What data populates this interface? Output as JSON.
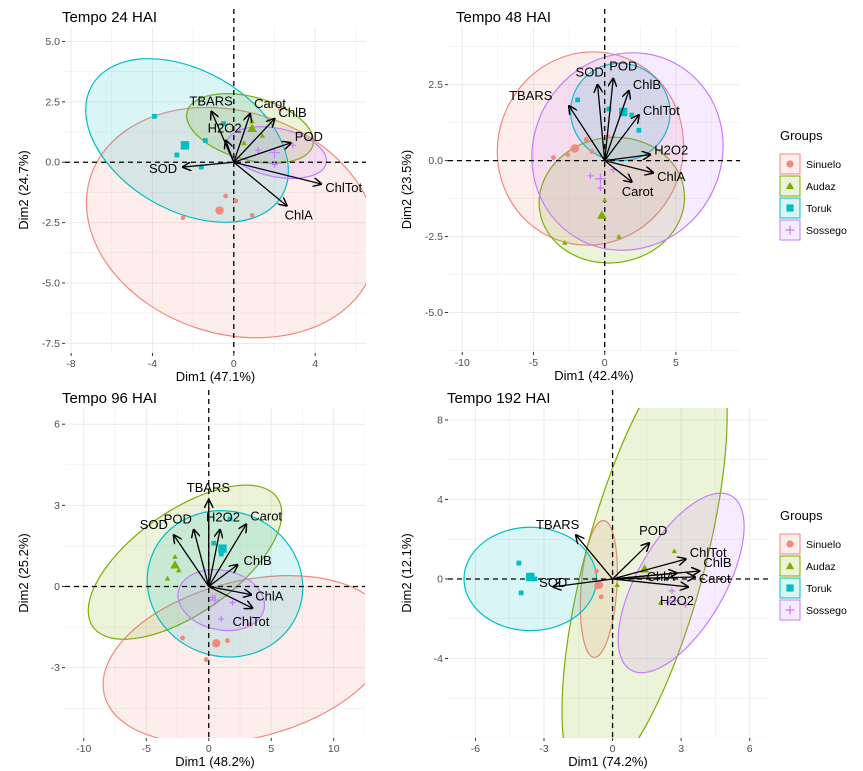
{
  "colors": {
    "Sinuelo": "#F08A80",
    "Audaz": "#7CAE00",
    "Toruk": "#00BFC4",
    "Sossego": "#C77CFF",
    "panel": "#ffffff",
    "grid": "#ebebeb",
    "arrow": "#000000"
  },
  "legend": {
    "title": "Groups",
    "items": [
      {
        "name": "Sinuelo",
        "shape": "circle"
      },
      {
        "name": "Audaz",
        "shape": "triangle"
      },
      {
        "name": "Toruk",
        "shape": "square"
      },
      {
        "name": "Sossego",
        "shape": "plus"
      }
    ]
  },
  "chart_data": [
    {
      "type": "scatter",
      "title": "Tempo 24 HAI",
      "xlabel": "Dim1 (47.1%)",
      "ylabel": "Dim2 (24.7%)",
      "xlim": [
        -8.3,
        6.5
      ],
      "ylim": [
        -7.9,
        5.6
      ],
      "xticks": [
        -8,
        -4,
        0,
        4
      ],
      "yticks": [
        5.0,
        2.5,
        0.0,
        -2.5,
        -5.0,
        -7.5
      ],
      "ytick_labels": [
        "5.0",
        "2.5",
        "0.0",
        "-2.5",
        "-5.0",
        "-7.5"
      ],
      "grid": true,
      "vectors": [
        {
          "name": "TBARS",
          "x": -1.1,
          "y": 2.1
        },
        {
          "name": "Carot",
          "x": 0.8,
          "y": 2.0
        },
        {
          "name": "ChlB",
          "x": 2.0,
          "y": 1.8
        },
        {
          "name": "H2O2",
          "x": -0.4,
          "y": 0.9
        },
        {
          "name": "POD",
          "x": 2.8,
          "y": 0.8
        },
        {
          "name": "SOD",
          "x": -2.5,
          "y": -0.2
        },
        {
          "name": "ChlTot",
          "x": 4.3,
          "y": -0.9
        },
        {
          "name": "ChlA",
          "x": 2.6,
          "y": -1.8
        }
      ],
      "groups": [
        {
          "name": "Sinuelo",
          "points": [
            [
              -2.5,
              -2.3
            ],
            [
              2.3,
              2.2
            ],
            [
              0.1,
              -1.6
            ],
            [
              0.9,
              -2.2
            ],
            [
              -0.4,
              -1.4
            ]
          ],
          "centroid": [
            -0.7,
            -2.0
          ],
          "ellipse": {
            "center": [
              -0.1,
              -2.5
            ],
            "rx": 7.3,
            "ry": 4.6,
            "angle": -18
          }
        },
        {
          "name": "Audaz",
          "points": [
            [
              0.9,
              1.7
            ],
            [
              1.4,
              1.1
            ],
            [
              0.5,
              0.8
            ]
          ],
          "centroid": [
            0.9,
            1.4
          ],
          "ellipse": {
            "center": [
              0.8,
              1.4
            ],
            "rx": 3.2,
            "ry": 1.3,
            "angle": -15
          }
        },
        {
          "name": "Toruk",
          "points": [
            [
              -3.9,
              1.9
            ],
            [
              -2.8,
              0.3
            ],
            [
              -1.4,
              0.9
            ],
            [
              -1.6,
              -0.2
            ],
            [
              -0.5,
              1.6
            ]
          ],
          "centroid": [
            -2.4,
            0.7
          ],
          "ellipse": {
            "center": [
              -2.3,
              0.9
            ],
            "rx": 5.4,
            "ry": 2.9,
            "angle": -30
          }
        },
        {
          "name": "Sossego",
          "points": [
            [
              2.0,
              -0.1
            ],
            [
              2.9,
              0.7
            ],
            [
              1.2,
              0.5
            ]
          ],
          "centroid": [
            2.0,
            0.4
          ],
          "ellipse": {
            "center": [
              2.1,
              0.4
            ],
            "rx": 2.5,
            "ry": 1.0,
            "angle": -12
          }
        }
      ]
    },
    {
      "type": "scatter",
      "title": "Tempo 48 HAI",
      "xlabel": "Dim1 (42.4%)",
      "ylabel": "Dim2 (23.5%)",
      "xlim": [
        -11,
        9.5
      ],
      "ylim": [
        -6.3,
        4.4
      ],
      "xticks": [
        -10,
        -5,
        0,
        5
      ],
      "yticks": [
        2.5,
        0.0,
        -2.5,
        -5.0
      ],
      "ytick_labels": [
        "2.5",
        "0.0",
        "-2.5",
        "-5.0"
      ],
      "grid": true,
      "vectors": [
        {
          "name": "SOD",
          "x": -0.5,
          "y": 2.5
        },
        {
          "name": "POD",
          "x": 0.6,
          "y": 2.7
        },
        {
          "name": "ChlB",
          "x": 1.7,
          "y": 2.3
        },
        {
          "name": "TBARS",
          "x": -2.5,
          "y": 1.8
        },
        {
          "name": "ChlTot",
          "x": 2.4,
          "y": 1.5
        },
        {
          "name": "H2O2",
          "x": 3.2,
          "y": 0.2
        },
        {
          "name": "ChlA",
          "x": 3.4,
          "y": -0.4
        },
        {
          "name": "Carot",
          "x": 1.9,
          "y": -0.7
        }
      ],
      "groups": [
        {
          "name": "Sinuelo",
          "points": [
            [
              -3.6,
              0.1
            ],
            [
              -2.6,
              0.2
            ],
            [
              -1.3,
              0.7
            ],
            [
              -0.9,
              0.3
            ],
            [
              0.2,
              0.8
            ]
          ],
          "centroid": [
            -2.1,
            0.4
          ],
          "ellipse": {
            "center": [
              -1.0,
              0.4
            ],
            "rx": 6.5,
            "ry": 3.2,
            "angle": -20
          }
        },
        {
          "name": "Audaz",
          "points": [
            [
              -2.8,
              -2.7
            ],
            [
              1.0,
              -2.5
            ],
            [
              0.0,
              -1.3
            ]
          ],
          "centroid": [
            -0.2,
            -1.8
          ],
          "ellipse": {
            "center": [
              0.5,
              -1.3
            ],
            "rx": 4.4,
            "ry": 2.4,
            "angle": -82
          }
        },
        {
          "name": "Toruk",
          "points": [
            [
              0.3,
              1.7
            ],
            [
              1.9,
              1.5
            ],
            [
              2.4,
              1.0
            ],
            [
              -1.9,
              2.0
            ]
          ],
          "centroid": [
            1.3,
            1.6
          ],
          "ellipse": {
            "center": [
              1.1,
              1.6
            ],
            "rx": 3.5,
            "ry": 1.6,
            "angle": -18
          }
        },
        {
          "name": "Sossego",
          "points": [
            [
              -1.0,
              -0.5
            ],
            [
              0.6,
              -0.3
            ],
            [
              -0.3,
              -0.9
            ]
          ],
          "centroid": [
            -0.3,
            -0.6
          ],
          "ellipse": {
            "center": [
              1.6,
              0.3
            ],
            "rx": 6.6,
            "ry": 3.3,
            "angle": -30
          }
        }
      ]
    },
    {
      "type": "scatter",
      "title": "Tempo 96 HAI",
      "xlabel": "Dim1 (48.2%)",
      "ylabel": "Dim2 (25.2%)",
      "xlim": [
        -11.5,
        12.5
      ],
      "ylim": [
        -5.6,
        6.6
      ],
      "xticks": [
        -10,
        -5,
        0,
        5,
        10
      ],
      "yticks": [
        6,
        3,
        0,
        -3
      ],
      "ytick_labels": [
        "6",
        "3",
        "0",
        "-3"
      ],
      "grid": true,
      "vectors": [
        {
          "name": "TBARS",
          "x": 0.0,
          "y": 3.2
        },
        {
          "name": "POD",
          "x": -1.2,
          "y": 2.1
        },
        {
          "name": "H2O2",
          "x": 0.9,
          "y": 2.1
        },
        {
          "name": "Carot",
          "x": 3.0,
          "y": 2.3
        },
        {
          "name": "SOD",
          "x": -2.8,
          "y": 1.9
        },
        {
          "name": "ChlB",
          "x": 2.3,
          "y": 0.8
        },
        {
          "name": "ChlA",
          "x": 3.4,
          "y": -0.3
        },
        {
          "name": "ChlTot",
          "x": 3.5,
          "y": -0.8
        }
      ],
      "groups": [
        {
          "name": "Sinuelo",
          "points": [
            [
              -2.1,
              -1.9
            ],
            [
              -0.2,
              -2.7
            ],
            [
              1.5,
              -2.0
            ],
            [
              3.3,
              -1.4
            ]
          ],
          "centroid": [
            0.6,
            -2.1
          ],
          "ellipse": {
            "center": [
              3.0,
              -2.7
            ],
            "rx": 11.7,
            "ry": 2.9,
            "angle": 14
          }
        },
        {
          "name": "Audaz",
          "points": [
            [
              -3.3,
              0.3
            ],
            [
              -2.7,
              1.1
            ],
            [
              -2.4,
              0.6
            ]
          ],
          "centroid": [
            -2.7,
            0.8
          ],
          "ellipse": {
            "center": [
              -1.9,
              0.9
            ],
            "rx": 9.0,
            "ry": 1.9,
            "angle": 35
          }
        },
        {
          "name": "Toruk",
          "points": [
            [
              0.4,
              1.6
            ],
            [
              1.0,
              1.2
            ],
            [
              1.7,
              2.5
            ]
          ],
          "centroid": [
            1.1,
            1.4
          ],
          "ellipse": {
            "center": [
              1.3,
              0.1
            ],
            "rx": 5.8,
            "ry": 2.9,
            "angle": 70
          }
        },
        {
          "name": "Sossego",
          "points": [
            [
              1.0,
              -1.2
            ],
            [
              1.9,
              -0.6
            ],
            [
              0.3,
              -0.4
            ]
          ],
          "centroid": [
            0.5,
            -0.5
          ],
          "ellipse": {
            "center": [
              1.0,
              -0.5
            ],
            "rx": 3.5,
            "ry": 1.1,
            "angle": -12
          }
        }
      ]
    },
    {
      "type": "scatter",
      "title": "Tempo 192 HAI",
      "xlabel": "Dim1 (74.2%)",
      "ylabel": "Dim2 (12.1%)",
      "xlim": [
        -7.2,
        6.8
      ],
      "ylim": [
        -8.0,
        8.6
      ],
      "xticks": [
        -6,
        -3,
        0,
        3,
        6
      ],
      "yticks": [
        8,
        4,
        0,
        -4
      ],
      "ytick_labels": [
        "8",
        "4",
        "0",
        "-4"
      ],
      "grid": true,
      "vectors": [
        {
          "name": "TBARS",
          "x": -1.6,
          "y": 2.2
        },
        {
          "name": "POD",
          "x": 1.6,
          "y": 1.8
        },
        {
          "name": "ChlTot",
          "x": 3.2,
          "y": 1.0
        },
        {
          "name": "ChlA",
          "x": 2.8,
          "y": 0.3
        },
        {
          "name": "ChlB",
          "x": 3.8,
          "y": 0.4
        },
        {
          "name": "Carot",
          "x": 3.6,
          "y": 0.1
        },
        {
          "name": "H2O2",
          "x": 3.3,
          "y": -0.4
        },
        {
          "name": "SOD",
          "x": -2.6,
          "y": -0.4
        }
      ],
      "groups": [
        {
          "name": "Sinuelo",
          "points": [
            [
              -0.7,
              0.4
            ],
            [
              -0.7,
              -0.4
            ],
            [
              -0.5,
              -0.9
            ]
          ],
          "centroid": [
            -0.6,
            -0.3
          ],
          "ellipse": {
            "center": [
              -0.6,
              -0.5
            ],
            "rx": 3.0,
            "ry": 0.9,
            "angle": 86
          }
        },
        {
          "name": "Audaz",
          "points": [
            [
              2.7,
              1.4
            ],
            [
              2.1,
              -1.2
            ],
            [
              0.2,
              -0.3
            ]
          ],
          "centroid": [
            1.4,
            0.5
          ],
          "ellipse": {
            "center": [
              1.4,
              0.8
            ],
            "rx": 10.0,
            "ry": 3.0,
            "angle": 75
          }
        },
        {
          "name": "Toruk",
          "points": [
            [
              -4.1,
              0.8
            ],
            [
              -4.0,
              -0.7
            ],
            [
              -3.4,
              0.0
            ]
          ],
          "centroid": [
            -3.6,
            0.1
          ],
          "ellipse": {
            "center": [
              -3.6,
              0.0
            ],
            "rx": 2.9,
            "ry": 2.6,
            "angle": 0
          }
        },
        {
          "name": "Sossego",
          "points": [
            [
              2.4,
              -1.2
            ],
            [
              3.2,
              -1.3
            ],
            [
              2.6,
              -0.6
            ]
          ],
          "centroid": [
            2.7,
            -1.1
          ],
          "ellipse": {
            "center": [
              3.0,
              -0.2
            ],
            "rx": 4.4,
            "ry": 2.2,
            "angle": 60
          }
        }
      ]
    }
  ]
}
